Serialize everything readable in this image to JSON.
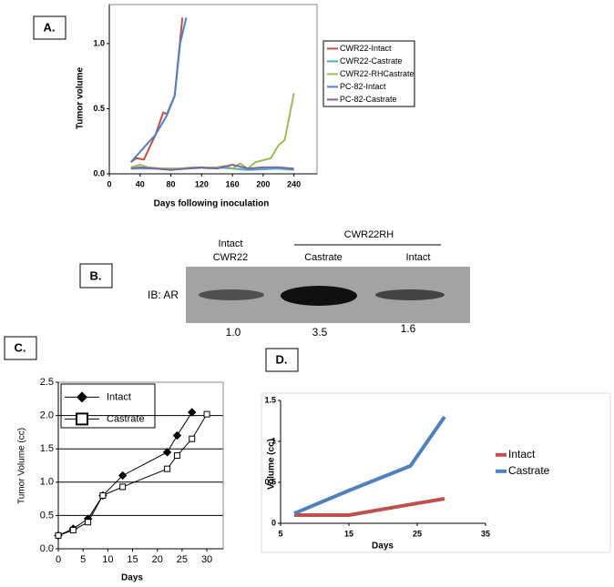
{
  "chart_data": [
    {
      "type": "line",
      "panel_label": "A.",
      "x_label": "Days following inoculation",
      "y_label": "Tumor volume",
      "xlim": [
        0,
        270
      ],
      "ylim": [
        0,
        1.3
      ],
      "xticks": [
        0,
        40,
        80,
        120,
        160,
        200,
        240
      ],
      "yticks": [
        {
          "value": 0,
          "label": "0.0"
        },
        {
          "value": 0.5,
          "label": "0.5"
        },
        {
          "value": 1,
          "label": "1.0"
        }
      ],
      "grid": false,
      "series": [
        {
          "name": "CWR22-Intact",
          "color": "#c0504d",
          "x": [
            28,
            35,
            45,
            60,
            70,
            75,
            85,
            95
          ],
          "values": [
            0.09,
            0.12,
            0.11,
            0.3,
            0.47,
            0.46,
            0.6,
            1.2
          ]
        },
        {
          "name": "CWR22-Castrate",
          "color": "#4bacc6",
          "x": [
            28,
            60,
            100,
            140,
            180,
            220,
            240
          ],
          "values": [
            0.04,
            0.04,
            0.04,
            0.05,
            0.03,
            0.04,
            0.03
          ]
        },
        {
          "name": "CWR22-RHCastrate",
          "color": "#9bbb59",
          "x": [
            28,
            40,
            50,
            70,
            90,
            110,
            130,
            150,
            160,
            170,
            180,
            190,
            210,
            220,
            228,
            240
          ],
          "values": [
            0.05,
            0.07,
            0.05,
            0.04,
            0.04,
            0.05,
            0.04,
            0.06,
            0.04,
            0.08,
            0.04,
            0.09,
            0.12,
            0.22,
            0.26,
            0.62
          ]
        },
        {
          "name": "PC-82-Intact",
          "color": "#4f81bd",
          "x": [
            28,
            60,
            75,
            85,
            92,
            100
          ],
          "values": [
            0.09,
            0.3,
            0.45,
            0.6,
            1.0,
            1.2
          ]
        },
        {
          "name": "PC-82-Castrate",
          "color": "#8064a2",
          "x": [
            28,
            40,
            60,
            80,
            100,
            120,
            140,
            160,
            180,
            200,
            220,
            240
          ],
          "values": [
            0.04,
            0.05,
            0.04,
            0.03,
            0.04,
            0.05,
            0.04,
            0.07,
            0.04,
            0.05,
            0.05,
            0.04
          ]
        }
      ]
    },
    {
      "type": "line",
      "panel_label": "C.",
      "x_label": "Days",
      "y_label": "Tumor Volume (cc)",
      "xlim": [
        0,
        33.3
      ],
      "ylim": [
        0,
        2.5
      ],
      "xticks": [
        0,
        5,
        10,
        15,
        20,
        25,
        30
      ],
      "yticks": [
        {
          "value": 0,
          "label": "0.0"
        },
        {
          "value": 0.5,
          "label": "0.5"
        },
        {
          "value": 1,
          "label": "1.0"
        },
        {
          "value": 1.5,
          "label": "1.5"
        },
        {
          "value": 2,
          "label": "2.0"
        },
        {
          "value": 2.5,
          "label": "2.5"
        }
      ],
      "grid": true,
      "series": [
        {
          "name": "Intact",
          "color": "#000000",
          "marker": "diamond",
          "x": [
            0,
            3,
            6,
            9,
            13,
            22,
            24,
            27
          ],
          "values": [
            0.2,
            0.3,
            0.45,
            0.8,
            1.1,
            1.45,
            1.7,
            2.05
          ]
        },
        {
          "name": "Castrate",
          "color": "#000000",
          "marker": "square",
          "x": [
            0,
            3,
            6,
            9,
            13,
            22,
            24,
            27,
            30
          ],
          "values": [
            0.2,
            0.28,
            0.4,
            0.8,
            0.93,
            1.2,
            1.4,
            1.65,
            2.02
          ]
        }
      ]
    },
    {
      "type": "line",
      "panel_label": "D.",
      "x_label": "Days",
      "y_label": "Volume (cc)",
      "xlim": [
        5,
        35
      ],
      "ylim": [
        0,
        1.5
      ],
      "xticks": [
        5,
        15,
        25,
        35
      ],
      "yticks": [
        0,
        0.5,
        1,
        1.5
      ],
      "grid": false,
      "series": [
        {
          "name": "Intact",
          "color": "#c0504d",
          "x": [
            7,
            15,
            24,
            29
          ],
          "values": [
            0.1,
            0.1,
            0.23,
            0.3
          ]
        },
        {
          "name": "Castrate",
          "color": "#4f81bd",
          "x": [
            7,
            15,
            24,
            29
          ],
          "values": [
            0.12,
            0.4,
            0.7,
            1.3
          ]
        }
      ]
    }
  ],
  "blot": {
    "panel_label": "B.",
    "group_label": "CWR22RH",
    "lanes": [
      [
        "Intact",
        "CWR22"
      ],
      [
        "Castrate"
      ],
      [
        "Intact"
      ]
    ],
    "row_label": "IB: AR",
    "quantification": [
      "1.0",
      "3.5",
      "1.6"
    ]
  }
}
